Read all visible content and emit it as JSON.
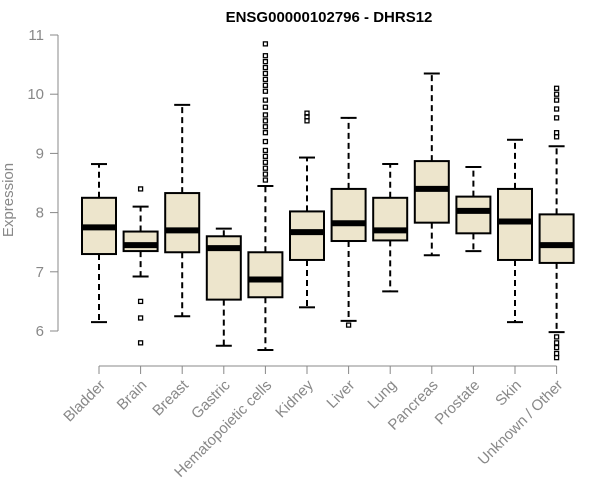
{
  "chart_data": {
    "type": "boxplot",
    "title": "ENSG00000102796 - DHRS12",
    "xlabel": "",
    "ylabel": "Expression",
    "ylim": [
      5.4,
      11.05
    ],
    "yticks": [
      6,
      7,
      8,
      9,
      10,
      11
    ],
    "box_fill": "#EDE5CC",
    "categories": [
      "Bladder",
      "Brain",
      "Breast",
      "Gastric",
      "Hematopoietic cells",
      "Kidney",
      "Liver",
      "Lung",
      "Pancreas",
      "Prostate",
      "Skin",
      "Unknown / Other"
    ],
    "boxes": [
      {
        "name": "Bladder",
        "min": 6.15,
        "q1": 7.3,
        "median": 7.75,
        "q3": 8.25,
        "max": 8.82,
        "outliers": []
      },
      {
        "name": "Brain",
        "min": 6.92,
        "q1": 7.35,
        "median": 7.45,
        "q3": 7.68,
        "max": 8.1,
        "outliers": [
          8.4,
          6.5,
          6.22,
          5.8
        ]
      },
      {
        "name": "Breast",
        "min": 6.25,
        "q1": 7.33,
        "median": 7.7,
        "q3": 8.33,
        "max": 9.82,
        "outliers": []
      },
      {
        "name": "Gastric",
        "min": 5.75,
        "q1": 6.53,
        "median": 7.4,
        "q3": 7.6,
        "max": 7.73,
        "outliers": []
      },
      {
        "name": "Hematopoietic cells",
        "min": 5.68,
        "q1": 6.57,
        "median": 6.87,
        "q3": 7.33,
        "max": 8.45,
        "outliers": [
          10.85,
          10.65,
          10.55,
          10.45,
          10.35,
          10.25,
          10.15,
          10.05,
          9.9,
          9.78,
          9.65,
          9.55,
          9.45,
          9.35,
          9.2,
          9.05,
          8.95,
          8.85,
          8.75,
          8.65,
          8.55
        ]
      },
      {
        "name": "Kidney",
        "min": 6.4,
        "q1": 7.2,
        "median": 7.67,
        "q3": 8.02,
        "max": 8.93,
        "outliers": [
          9.68,
          9.62,
          9.55
        ]
      },
      {
        "name": "Liver",
        "min": 6.17,
        "q1": 7.52,
        "median": 7.82,
        "q3": 8.4,
        "max": 9.6,
        "outliers": [
          6.1
        ]
      },
      {
        "name": "Lung",
        "min": 6.67,
        "q1": 7.53,
        "median": 7.7,
        "q3": 8.25,
        "max": 8.82,
        "outliers": []
      },
      {
        "name": "Pancreas",
        "min": 7.28,
        "q1": 7.83,
        "median": 8.4,
        "q3": 8.87,
        "max": 10.35,
        "outliers": []
      },
      {
        "name": "Prostate",
        "min": 7.35,
        "q1": 7.65,
        "median": 8.03,
        "q3": 8.27,
        "max": 8.77,
        "outliers": []
      },
      {
        "name": "Skin",
        "min": 6.15,
        "q1": 7.2,
        "median": 7.85,
        "q3": 8.4,
        "max": 9.23,
        "outliers": []
      },
      {
        "name": "Unknown / Other",
        "min": 5.98,
        "q1": 7.15,
        "median": 7.45,
        "q3": 7.97,
        "max": 9.12,
        "outliers": [
          10.1,
          10.0,
          9.9,
          9.75,
          9.6,
          9.35,
          9.28,
          5.9,
          5.8,
          5.72,
          5.62,
          5.55
        ]
      }
    ]
  }
}
